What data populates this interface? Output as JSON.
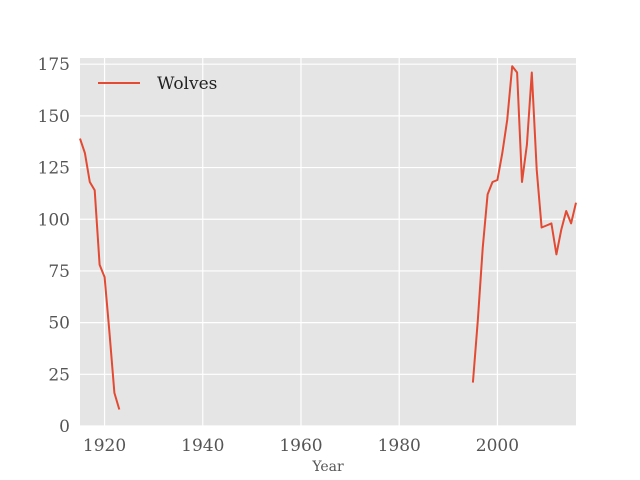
{
  "chart_data": {
    "type": "line",
    "title": "",
    "xlabel": "Year",
    "ylabel": "",
    "xlim": [
      1915,
      2016
    ],
    "ylim": [
      0,
      178
    ],
    "xticks": [
      1920,
      1940,
      1960,
      1980,
      2000
    ],
    "yticks": [
      0,
      25,
      50,
      75,
      100,
      125,
      150,
      175
    ],
    "grid": true,
    "legend_position": "top-left",
    "colors": {
      "background": "#e5e5e5",
      "grid": "#ffffff",
      "series": "#e24a33"
    },
    "series": [
      {
        "name": "Wolves",
        "segments": [
          {
            "x": [
              1915,
              1916,
              1917,
              1918,
              1919,
              1920,
              1921,
              1922,
              1923
            ],
            "y": [
              139,
              132,
              118,
              114,
              78,
              72,
              45,
              16,
              8
            ]
          },
          {
            "x": [
              1995,
              1996,
              1997,
              1998,
              1999,
              2000,
              2001,
              2002,
              2003,
              2004,
              2005,
              2006,
              2007,
              2008,
              2009,
              2010,
              2011,
              2012,
              2013,
              2014,
              2015,
              2016
            ],
            "y": [
              21,
              51,
              86,
              112,
              118,
              119,
              132,
              148,
              174,
              171,
              118,
              136,
              171,
              124,
              96,
              97,
              98,
              83,
              95,
              104,
              98,
              108
            ]
          }
        ]
      }
    ]
  }
}
